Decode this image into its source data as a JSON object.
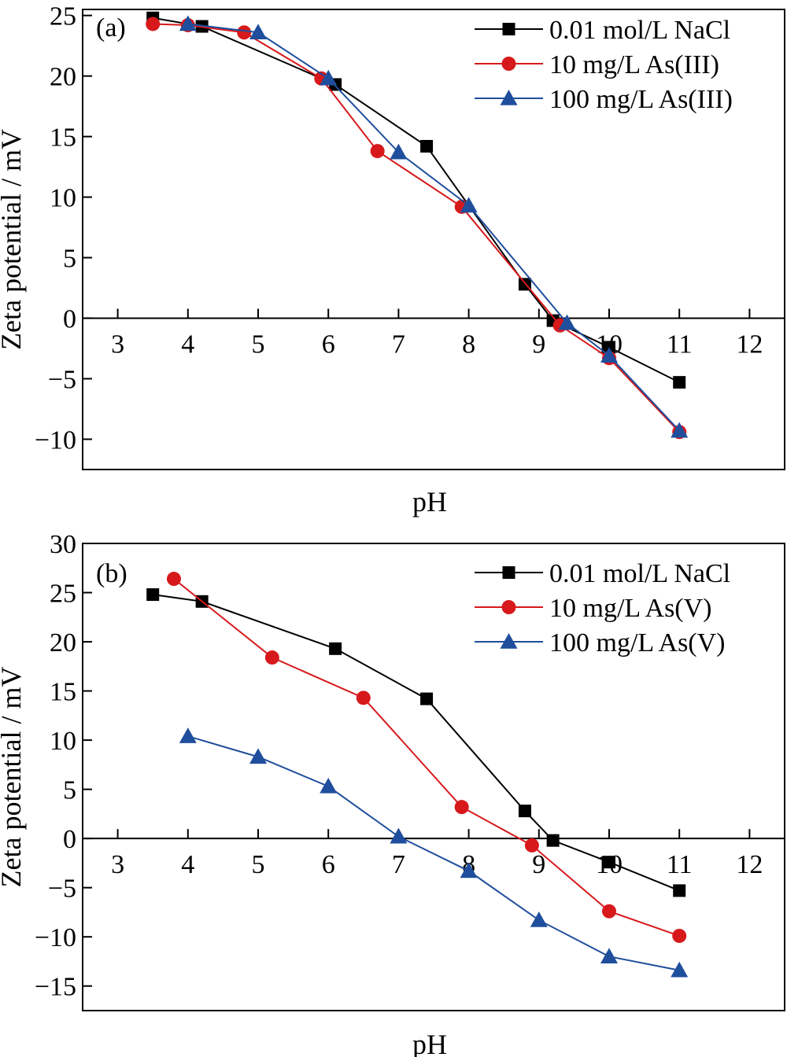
{
  "chart_data": [
    {
      "type": "line",
      "panel_label": "(a)",
      "xlabel": "pH",
      "ylabel": "Zeta potential / mV",
      "xlim": [
        2.5,
        12.5
      ],
      "ylim": [
        -12.5,
        25.5
      ],
      "xticks": [
        3,
        4,
        5,
        6,
        7,
        8,
        9,
        10,
        11,
        12
      ],
      "yticks": [
        25,
        20,
        15,
        10,
        5,
        0,
        -5,
        -10
      ],
      "ytick_labels": [
        "25",
        "20",
        "15",
        "10",
        "5",
        "0",
        "−5",
        "−10"
      ],
      "legend_position": "top-right",
      "grid": false,
      "series": [
        {
          "name": "0.01 mol/L NaCl",
          "color": "#000000",
          "marker": "square",
          "x": [
            3.5,
            4.2,
            6.1,
            7.4,
            8.8,
            9.2,
            10.0,
            11.0
          ],
          "y": [
            24.8,
            24.1,
            19.3,
            14.2,
            2.8,
            -0.2,
            -2.4,
            -5.3
          ]
        },
        {
          "name": "10 mg/L As(III)",
          "color": "#d7191c",
          "marker": "circle",
          "x": [
            3.5,
            4.0,
            4.8,
            5.9,
            6.7,
            7.9,
            9.3,
            10.0,
            11.0
          ],
          "y": [
            24.3,
            24.2,
            23.6,
            19.8,
            13.8,
            9.2,
            -0.6,
            -3.3,
            -9.4
          ]
        },
        {
          "name": "100 mg/L As(III)",
          "color": "#1f4e9c",
          "marker": "triangle",
          "x": [
            4.0,
            5.0,
            6.0,
            7.0,
            8.0,
            9.4,
            10.0,
            11.0
          ],
          "y": [
            24.3,
            23.6,
            19.8,
            13.7,
            9.3,
            -0.4,
            -3.1,
            -9.3
          ]
        }
      ]
    },
    {
      "type": "line",
      "panel_label": "(b)",
      "xlabel": "pH",
      "ylabel": "Zeta potential / mV",
      "xlim": [
        2.5,
        12.5
      ],
      "ylim": [
        -17.5,
        30
      ],
      "xticks": [
        3,
        4,
        5,
        6,
        7,
        8,
        9,
        10,
        11,
        12
      ],
      "yticks": [
        30,
        25,
        20,
        15,
        10,
        5,
        0,
        -5,
        -10,
        -15
      ],
      "ytick_labels": [
        "30",
        "25",
        "20",
        "15",
        "10",
        "5",
        "0",
        "−5",
        "−10",
        "−15"
      ],
      "legend_position": "top-right",
      "grid": false,
      "series": [
        {
          "name": "0.01 mol/L NaCl",
          "color": "#000000",
          "marker": "square",
          "x": [
            3.5,
            4.2,
            6.1,
            7.4,
            8.8,
            9.2,
            10.0,
            11.0
          ],
          "y": [
            24.8,
            24.1,
            19.3,
            14.2,
            2.8,
            -0.2,
            -2.4,
            -5.3
          ]
        },
        {
          "name": "10 mg/L As(V)",
          "color": "#d7191c",
          "marker": "circle",
          "x": [
            3.8,
            5.2,
            6.5,
            7.9,
            8.9,
            10.0,
            11.0
          ],
          "y": [
            26.4,
            18.4,
            14.3,
            3.2,
            -0.7,
            -7.4,
            -9.9
          ]
        },
        {
          "name": "100 mg/L As(V)",
          "color": "#1f4e9c",
          "marker": "triangle",
          "x": [
            4.0,
            5.0,
            6.0,
            7.0,
            8.0,
            9.0,
            10.0,
            11.0
          ],
          "y": [
            10.4,
            8.3,
            5.3,
            0.2,
            -3.3,
            -8.3,
            -12.0,
            -13.4
          ]
        }
      ]
    }
  ]
}
